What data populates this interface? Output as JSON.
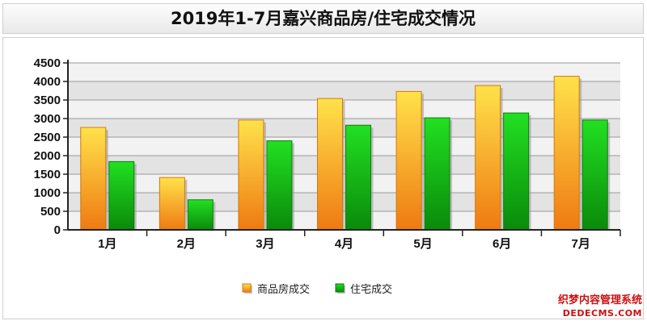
{
  "chart_data": {
    "type": "bar",
    "title": "2019年1-7月嘉兴商品房/住宅成交情况",
    "categories": [
      "1月",
      "2月",
      "3月",
      "4月",
      "5月",
      "6月",
      "7月"
    ],
    "series": [
      {
        "name": "商品房成交",
        "values": [
          2760,
          1410,
          2960,
          3540,
          3730,
          3890,
          4140
        ],
        "color": "#f2a12a"
      },
      {
        "name": "住宅成交",
        "values": [
          1840,
          810,
          2400,
          2820,
          3020,
          3150,
          2960
        ],
        "color": "#1fb31f"
      }
    ],
    "ylim": [
      0,
      4500
    ],
    "yticks": [
      0,
      500,
      1000,
      1500,
      2000,
      2500,
      3000,
      3500,
      4000,
      4500
    ],
    "grid": true,
    "legend_position": "bottom-center"
  },
  "watermark": {
    "line1": "织梦内容管理系统",
    "line2": "DEDECMS.COM"
  }
}
